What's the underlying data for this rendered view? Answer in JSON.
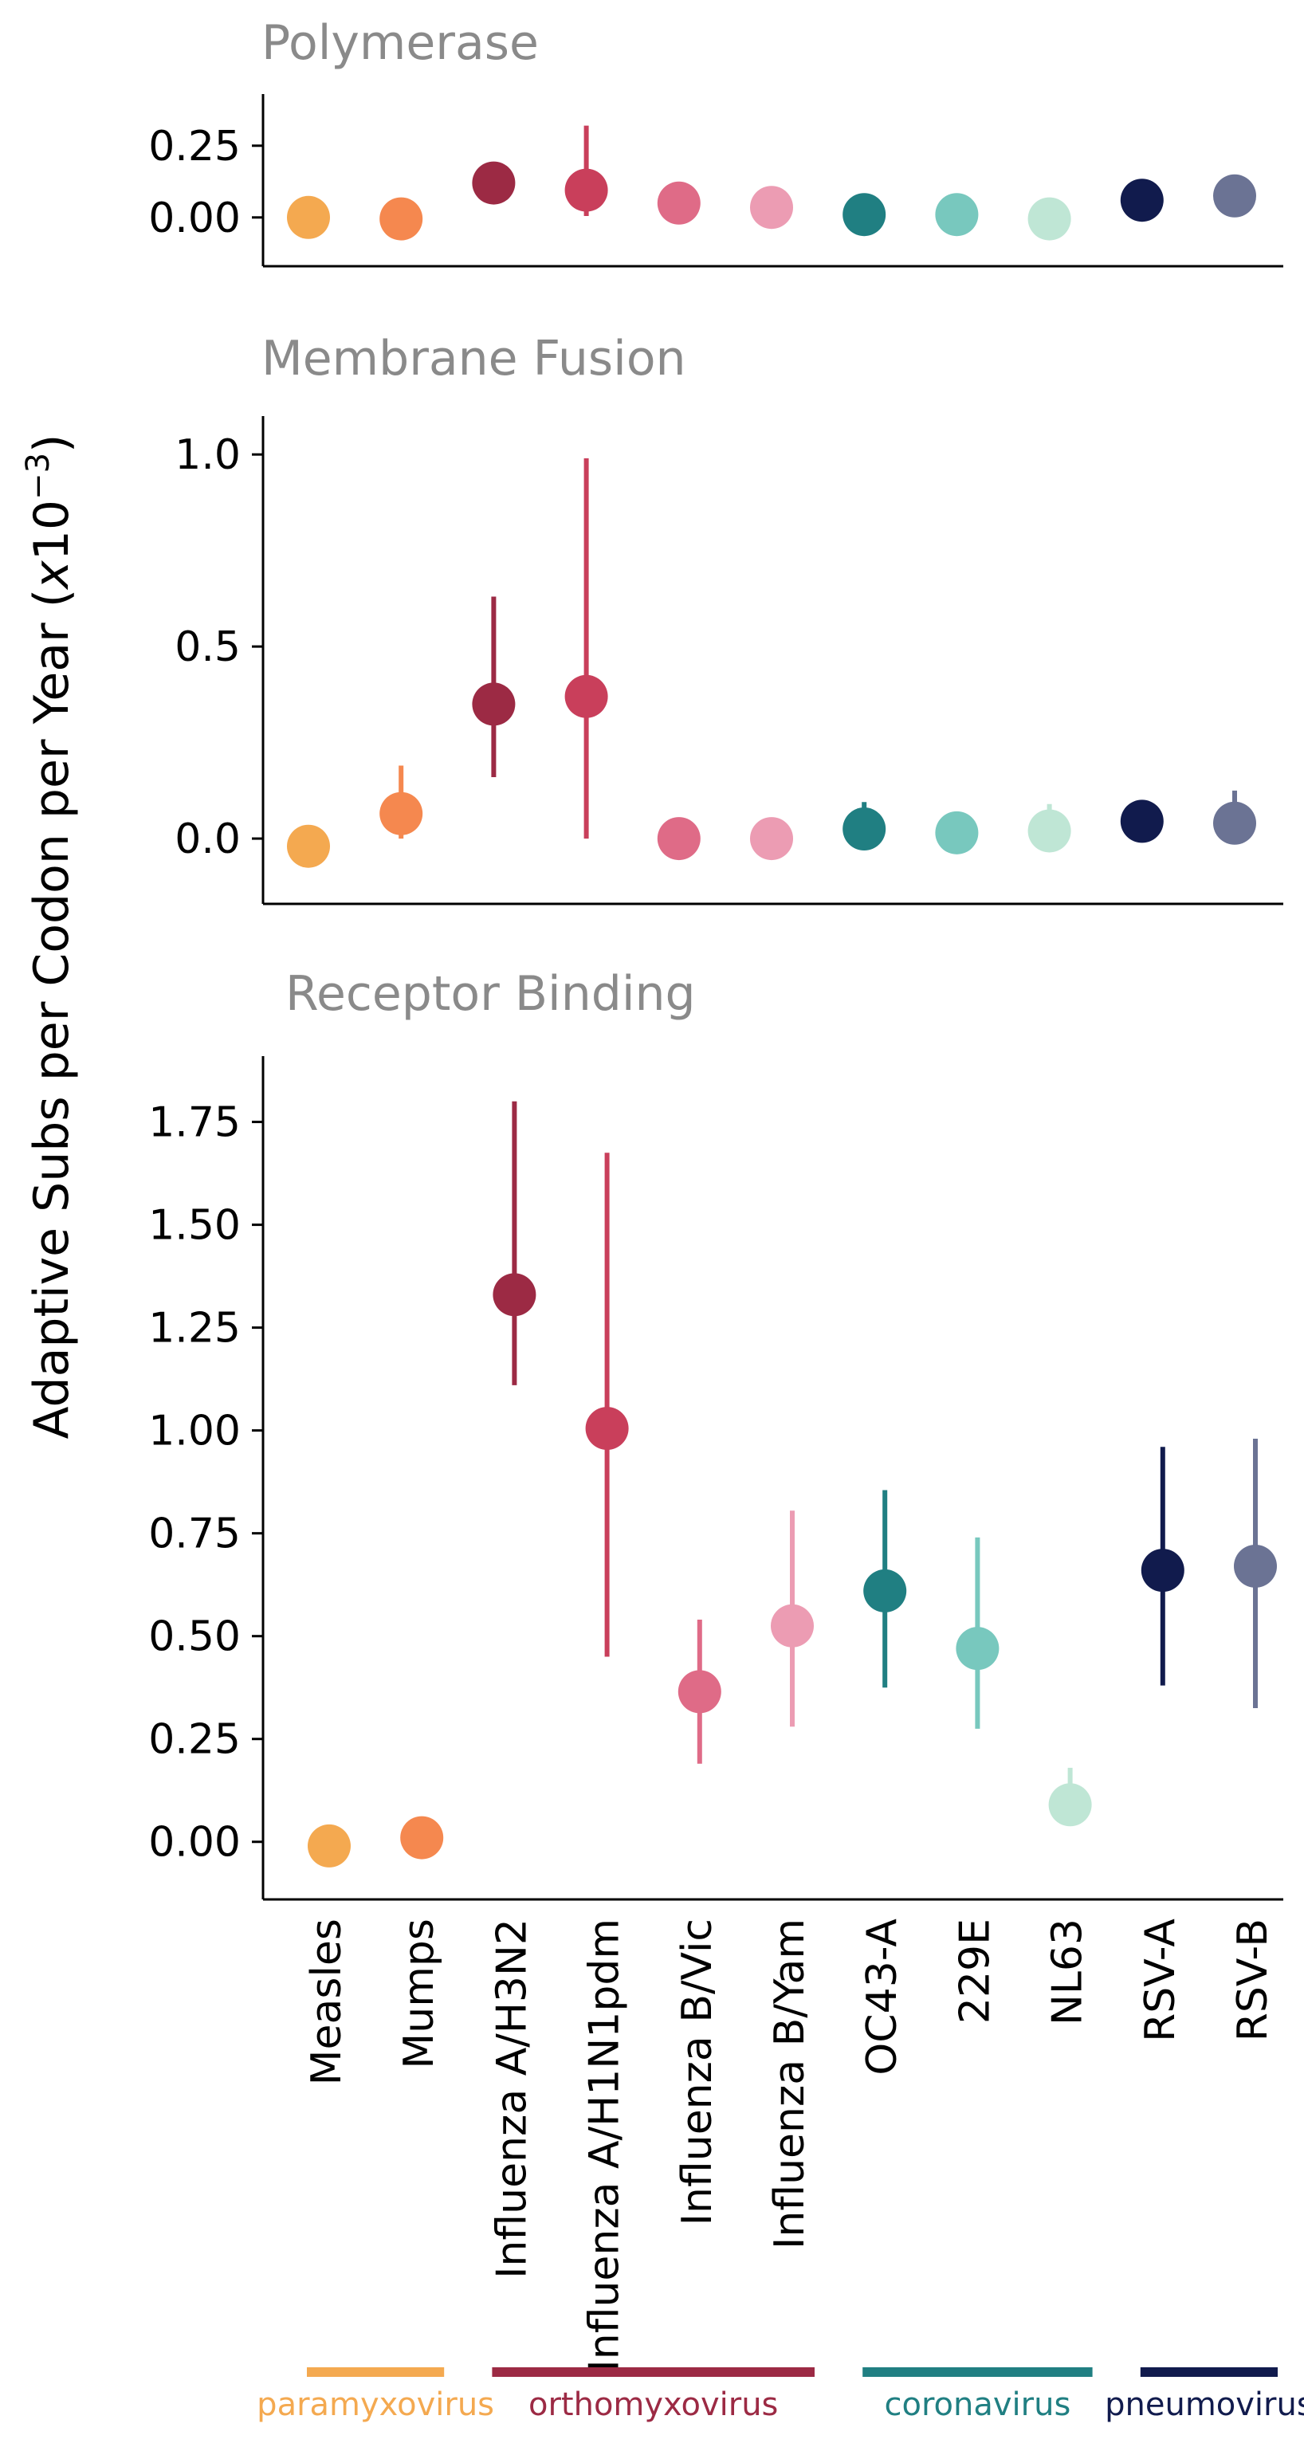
{
  "figure": {
    "ylabel_main": "Adaptive Subs per Codon per Year (",
    "ylabel_italic_x": "x",
    "ylabel_base": "10",
    "ylabel_exp": "−3",
    "ylabel_close": ")"
  },
  "colors": {
    "title": "#8a8a8a",
    "axis": "#000000",
    "viruses": [
      "#f4a950",
      "#f5884f",
      "#9c2a44",
      "#c93f5b",
      "#df6b87",
      "#ec9cb3",
      "#207f82",
      "#78c8be",
      "#bfe6d5",
      "#111b4d",
      "#6b7394"
    ]
  },
  "chart_data": [
    {
      "type": "scatter",
      "title": "Polymerase",
      "categories": [
        "Measles",
        "Mumps",
        "Influenza A/H3N2",
        "Influenza A/H1N1pdm",
        "Influenza B/Vic",
        "Influenza B/Yam",
        "OC43-A",
        "229E",
        "NL63",
        "RSV-A",
        "RSV-B"
      ],
      "values": [
        0.0,
        -0.005,
        0.12,
        0.095,
        0.05,
        0.035,
        0.01,
        0.01,
        -0.005,
        0.06,
        0.075
      ],
      "err_low": [
        0.0,
        -0.005,
        0.12,
        0.005,
        0.05,
        0.035,
        0.01,
        0.01,
        -0.005,
        0.06,
        0.075
      ],
      "err_high": [
        0.03,
        -0.005,
        0.12,
        0.32,
        0.05,
        0.035,
        0.01,
        0.01,
        -0.005,
        0.06,
        0.075
      ],
      "yticks": [
        0.0,
        0.25
      ],
      "tick_labels": [
        "0.00",
        "0.25"
      ],
      "ylim": [
        -0.17,
        0.43
      ]
    },
    {
      "type": "scatter",
      "title": "Membrane Fusion",
      "categories": [
        "Measles",
        "Mumps",
        "Influenza A/H3N2",
        "Influenza A/H1N1pdm",
        "Influenza B/Vic",
        "Influenza B/Yam",
        "OC43-A",
        "229E",
        "NL63",
        "RSV-A",
        "RSV-B"
      ],
      "values": [
        -0.02,
        0.065,
        0.35,
        0.37,
        0.0,
        0.0,
        0.025,
        0.015,
        0.02,
        0.045,
        0.04
      ],
      "err_low": [
        -0.02,
        0.0,
        0.16,
        0.0,
        0.0,
        0.0,
        0.0,
        0.0,
        0.0,
        0.045,
        0.0
      ],
      "err_high": [
        -0.02,
        0.19,
        0.63,
        0.99,
        0.0,
        0.0,
        0.095,
        0.07,
        0.09,
        0.045,
        0.125
      ],
      "yticks": [
        0.0,
        0.5,
        1.0
      ],
      "tick_labels": [
        "0.0",
        "0.5",
        "1.0"
      ],
      "ylim": [
        -0.17,
        1.1
      ]
    },
    {
      "type": "scatter",
      "title": "Receptor Binding",
      "categories": [
        "Measles",
        "Mumps",
        "Influenza A/H3N2",
        "Influenza A/H1N1pdm",
        "Influenza B/Vic",
        "Influenza B/Yam",
        "OC43-A",
        "229E",
        "NL63",
        "RSV-A",
        "RSV-B"
      ],
      "values": [
        -0.01,
        0.01,
        1.33,
        1.005,
        0.365,
        0.525,
        0.61,
        0.47,
        0.09,
        0.66,
        0.67
      ],
      "err_low": [
        -0.01,
        0.01,
        1.11,
        0.45,
        0.19,
        0.28,
        0.375,
        0.275,
        0.04,
        0.38,
        0.325
      ],
      "err_high": [
        -0.01,
        0.01,
        1.8,
        1.675,
        0.54,
        0.805,
        0.855,
        0.74,
        0.18,
        0.96,
        0.98
      ],
      "yticks": [
        0.0,
        0.25,
        0.5,
        0.75,
        1.0,
        1.25,
        1.5,
        1.75
      ],
      "tick_labels": [
        "0.00",
        "0.25",
        "0.50",
        "0.75",
        "1.00",
        "1.25",
        "1.50",
        "1.75"
      ],
      "ylim": [
        -0.14,
        1.91
      ]
    }
  ],
  "families": [
    {
      "label": "paramyxovirus",
      "color": "#f4a950",
      "from": 0,
      "to": 1
    },
    {
      "label": "orthomyxovirus",
      "color": "#9c2a44",
      "from": 2,
      "to": 5
    },
    {
      "label": "coronavirus",
      "color": "#207f82",
      "from": 6,
      "to": 8
    },
    {
      "label": "pneumovirus",
      "color": "#111b4d",
      "from": 9,
      "to": 10
    }
  ]
}
